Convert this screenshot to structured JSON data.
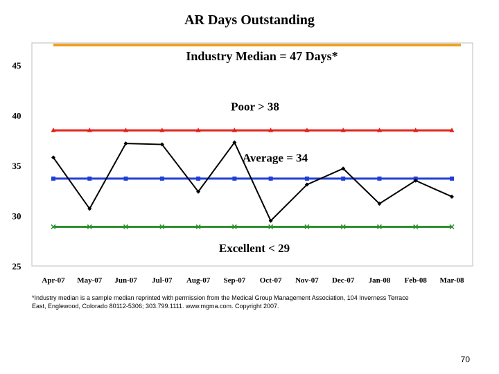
{
  "slide": {
    "footnote_line1": "*Industry median is a sample median reprinted with permission from the Medical Group Management Association, 104 Inverness Terrace",
    "footnote_line2": "East, Englewood, Colorado 80112-5306; 303.799.1111. www.mgma.com. Copyright 2007.",
    "page_number": "70"
  },
  "chart_data": {
    "type": "line",
    "title": "AR Days Outstanding",
    "xlabel": "",
    "ylabel": "",
    "categories": [
      "Apr-07",
      "May-07",
      "Jun-07",
      "Jul-07",
      "Aug-07",
      "Sep-07",
      "Oct-07",
      "Nov-07",
      "Dec-07",
      "Jan-08",
      "Feb-08",
      "Mar-08"
    ],
    "ylim": [
      25,
      47
    ],
    "yticks": [
      25,
      30,
      35,
      40,
      45
    ],
    "grid": false,
    "series": [
      {
        "name": "",
        "color": "#000000",
        "marker": "diamond",
        "values": [
          35.8,
          30.7,
          37.2,
          37.1,
          32.4,
          37.3,
          29.5,
          33.1,
          34.7,
          31.2,
          33.5,
          31.9
        ]
      },
      {
        "name": "",
        "color": "#e32119",
        "marker": "triangle",
        "values": [
          38.5,
          38.5,
          38.5,
          38.5,
          38.5,
          38.5,
          38.5,
          38.5,
          38.5,
          38.5,
          38.5,
          38.5
        ]
      },
      {
        "name": "",
        "color": "#1f3fd6",
        "marker": "square",
        "values": [
          33.7,
          33.7,
          33.7,
          33.7,
          33.7,
          33.7,
          33.7,
          33.7,
          33.7,
          33.7,
          33.7,
          33.7
        ]
      },
      {
        "name": "",
        "color": "#2f8f2f",
        "marker": "cross",
        "values": [
          28.9,
          28.9,
          28.9,
          28.9,
          28.9,
          28.9,
          28.9,
          28.9,
          28.9,
          28.9,
          28.9,
          28.9
        ]
      }
    ],
    "median_line": {
      "value": 47,
      "color": "#f0a020"
    },
    "annotations": [
      {
        "text": "Industry Median = 47 Days*",
        "anchor_value": 45.9
      },
      {
        "text": "Poor > 38",
        "anchor_value": 40.9
      },
      {
        "text": "Average = 34",
        "anchor_value": 35.8
      },
      {
        "text": "Excellent < 29",
        "anchor_value": 26.8
      }
    ]
  }
}
